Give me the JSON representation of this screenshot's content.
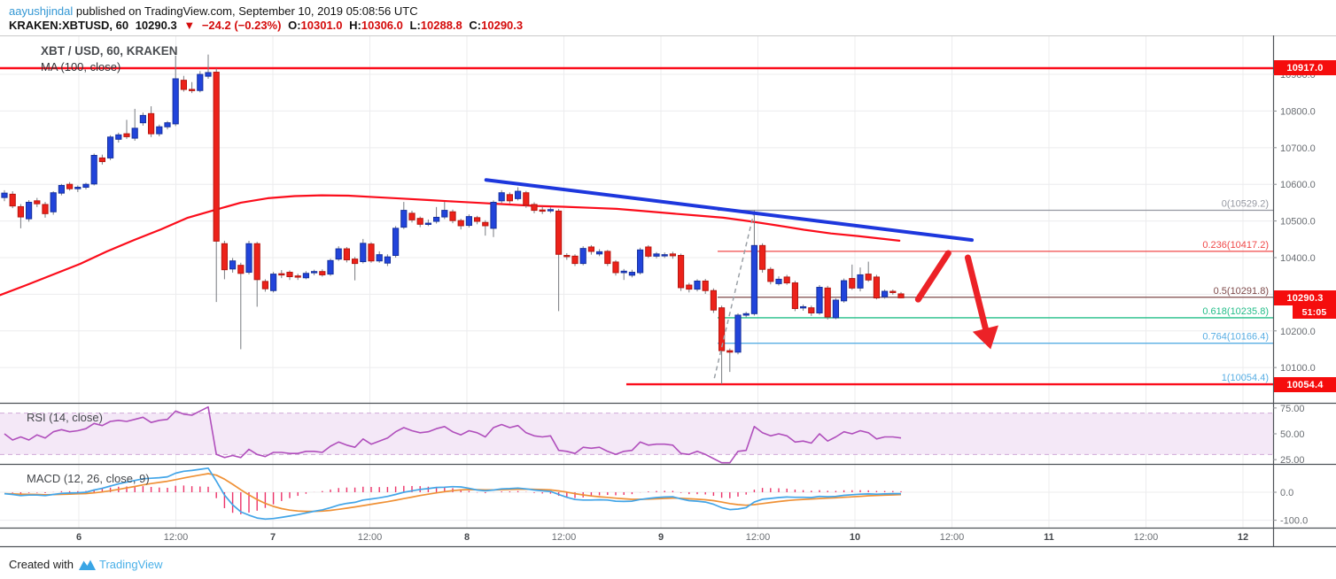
{
  "header": {
    "author": "aayushjindal",
    "published": "published on TradingView.com, September 10, 2019 05:08:56 UTC",
    "symbol": "KRAKEN:XBTUSD, 60",
    "last": "10290.3",
    "arrow": "▼",
    "change": "−24.2 (−0.23%)",
    "o_label": "O:",
    "o": "10301.0",
    "h_label": "H:",
    "h": "10306.0",
    "l_label": "L:",
    "l": "10288.8",
    "c_label": "C:",
    "c": "10290.3"
  },
  "legends": {
    "title": "XBT / USD, 60, KRAKEN",
    "ma": "MA (100, close)",
    "rsi": "RSI (14, close)",
    "macd": "MACD (12, 26, close, 9)"
  },
  "tags": {
    "resistance": "10917.0",
    "last_price": "10290.3",
    "countdown": "51:05",
    "support": "10054.4"
  },
  "footer": {
    "created_with": "Created with",
    "brand": "TradingView"
  },
  "chart_data": {
    "type": "candlestick+indicators",
    "symbol": "XBT/USD",
    "exchange": "KRAKEN",
    "interval_minutes": 60,
    "price_range_visible": [
      10003,
      11006
    ],
    "grid": true,
    "colors": {
      "up": "#2144db",
      "up_border": "#16309e",
      "down": "#ec221a",
      "down_border": "#b8150f",
      "wick": "#787b80",
      "ma": "#fb0d1b",
      "trendline": "#1d37dd",
      "rsi": "#b04fbc",
      "rsi_band_fill": "#f4e8f7",
      "rsi_band_edge": "#cfaad8",
      "macd_line": "#42a5e8",
      "signal_line": "#ef9136",
      "histogram": "#ec3369",
      "drawn_level": "#fb0d1b",
      "arrow": "#ec2227",
      "dashed_drawing": "#9aa0a6",
      "tag_bg": "#f50d0d",
      "grid": "#ececee",
      "axis_text": "#6a6e73",
      "separator": "#4e5257"
    },
    "x_labels": [
      "6",
      "12:00",
      "7",
      "12:00",
      "8",
      "12:00",
      "9",
      "12:00",
      "10",
      "12:00",
      "11",
      "12:00",
      "12"
    ],
    "price_ticks": [
      {
        "v": 10900,
        "label": "10900.0"
      },
      {
        "v": 10800,
        "label": "10800.0"
      },
      {
        "v": 10700,
        "label": "10700.0"
      },
      {
        "v": 10600,
        "label": "10600.0"
      },
      {
        "v": 10500,
        "label": "10500.0"
      },
      {
        "v": 10400,
        "label": "10400.0"
      },
      {
        "v": 10200,
        "label": "10200.0"
      },
      {
        "v": 10100,
        "label": "10100.0"
      }
    ],
    "price_gridlines": [
      10900,
      10800,
      10700,
      10600,
      10500,
      10400,
      10300,
      10200,
      10100
    ],
    "rsi_scale": [
      {
        "v": 75,
        "label": "75.00"
      },
      {
        "v": 50,
        "label": "50.00"
      },
      {
        "v": 25,
        "label": "25.00"
      }
    ],
    "rsi_band": [
      30,
      70
    ],
    "macd_scale": [
      {
        "v": 0,
        "label": "0.0"
      },
      {
        "v": -100,
        "label": "-100.0"
      }
    ],
    "fib_levels": [
      {
        "label": "0(10529.2)",
        "price": 10529.2,
        "color": "#9598a1"
      },
      {
        "label": "0.236(10417.2)",
        "price": 10417.2,
        "color": "#f04848"
      },
      {
        "label": "0.5(10291.8)",
        "price": 10291.8,
        "color": "#7e4a4a"
      },
      {
        "label": "0.618(10235.8)",
        "price": 10235.8,
        "color": "#22bd88"
      },
      {
        "label": "0.764(10166.4)",
        "price": 10166.4,
        "color": "#58aee4"
      },
      {
        "label": "1(10054.4)",
        "price": 10054.4,
        "color": "#58aee4"
      }
    ],
    "fib_start_index": 87.5,
    "horizontal_lines": [
      {
        "price": 10917.0,
        "from_index": -0.6,
        "label": "10917.0"
      },
      {
        "price": 10054.4,
        "from_index": 76.3,
        "label": "10054.4"
      }
    ],
    "trend_line": {
      "from": {
        "i": 59.1,
        "price": 10612
      },
      "to": {
        "i": 118.7,
        "price": 10448
      }
    },
    "dashed_line": {
      "from": {
        "i": 87.1,
        "price": 10071
      },
      "to": {
        "i": 91.9,
        "price": 10518
      }
    },
    "arrow_segments": [
      {
        "from": {
          "i": 112.1,
          "price": 10286
        },
        "to": {
          "i": 115.8,
          "price": 10412
        },
        "head": false
      },
      {
        "from": {
          "i": 118.2,
          "price": 10400
        },
        "to": {
          "i": 121.0,
          "price": 10150
        },
        "head": true
      }
    ],
    "ma_points": [
      [
        -0.5,
        10298
      ],
      [
        2.7,
        10325
      ],
      [
        6,
        10354
      ],
      [
        9.3,
        10383
      ],
      [
        12.6,
        10417
      ],
      [
        15.9,
        10448
      ],
      [
        19.2,
        10477
      ],
      [
        22.5,
        10509
      ],
      [
        25.8,
        10530
      ],
      [
        29,
        10550
      ],
      [
        32.3,
        10562
      ],
      [
        35.6,
        10568
      ],
      [
        38.9,
        10570
      ],
      [
        42.2,
        10569
      ],
      [
        45.5,
        10565
      ],
      [
        48.8,
        10561
      ],
      [
        52.1,
        10557
      ],
      [
        55.3,
        10553
      ],
      [
        58.6,
        10549
      ],
      [
        61.9,
        10545
      ],
      [
        65.2,
        10541
      ],
      [
        68.5,
        10539
      ],
      [
        71.8,
        10536
      ],
      [
        75.1,
        10533
      ],
      [
        78.4,
        10527
      ],
      [
        81.6,
        10521
      ],
      [
        84.9,
        10515
      ],
      [
        88.2,
        10509
      ],
      [
        91.5,
        10499
      ],
      [
        94.8,
        10488
      ],
      [
        98.1,
        10476
      ],
      [
        101.4,
        10466
      ],
      [
        104.7,
        10459
      ],
      [
        107.5,
        10452
      ],
      [
        109.8,
        10446
      ]
    ],
    "candles_ohlc": [
      [
        10564,
        10584,
        10554,
        10576
      ],
      [
        10573,
        10581,
        10535,
        10541
      ],
      [
        10539,
        10546,
        10480,
        10511
      ],
      [
        10506,
        10557,
        10498,
        10551
      ],
      [
        10555,
        10563,
        10538,
        10547
      ],
      [
        10545,
        10552,
        10509,
        10520
      ],
      [
        10525,
        10581,
        10517,
        10577
      ],
      [
        10576,
        10601,
        10570,
        10597
      ],
      [
        10600,
        10606,
        10583,
        10588
      ],
      [
        10588,
        10597,
        10579,
        10592
      ],
      [
        10592,
        10604,
        10586,
        10600
      ],
      [
        10601,
        10684,
        10597,
        10679
      ],
      [
        10672,
        10681,
        10654,
        10662
      ],
      [
        10672,
        10734,
        10666,
        10729
      ],
      [
        10723,
        10741,
        10714,
        10735
      ],
      [
        10738,
        10776,
        10724,
        10730
      ],
      [
        10726,
        10806,
        10719,
        10753
      ],
      [
        10768,
        10796,
        10760,
        10788
      ],
      [
        10793,
        10813,
        10729,
        10738
      ],
      [
        10738,
        10763,
        10731,
        10757
      ],
      [
        10757,
        10773,
        10750,
        10768
      ],
      [
        10765,
        10951,
        10759,
        10888
      ],
      [
        10884,
        10896,
        10853,
        10859
      ],
      [
        10859,
        10879,
        10849,
        10856
      ],
      [
        10856,
        10909,
        10851,
        10900
      ],
      [
        10895,
        10954,
        10888,
        10905
      ],
      [
        10906,
        10916,
        10279,
        10445
      ],
      [
        10438,
        10446,
        10341,
        10367
      ],
      [
        10369,
        10399,
        10359,
        10391
      ],
      [
        10379,
        10386,
        10150,
        10357
      ],
      [
        10360,
        10446,
        10354,
        10438
      ],
      [
        10438,
        10443,
        10266,
        10340
      ],
      [
        10335,
        10341,
        10307,
        10315
      ],
      [
        10310,
        10361,
        10305,
        10355
      ],
      [
        10356,
        10366,
        10344,
        10353
      ],
      [
        10360,
        10365,
        10339,
        10348
      ],
      [
        10350,
        10356,
        10339,
        10347
      ],
      [
        10345,
        10363,
        10341,
        10357
      ],
      [
        10360,
        10367,
        10352,
        10362
      ],
      [
        10362,
        10368,
        10348,
        10353
      ],
      [
        10355,
        10397,
        10350,
        10392
      ],
      [
        10396,
        10431,
        10391,
        10424
      ],
      [
        10424,
        10429,
        10387,
        10394
      ],
      [
        10396,
        10402,
        10338,
        10384
      ],
      [
        10389,
        10451,
        10384,
        10439
      ],
      [
        10437,
        10442,
        10386,
        10391
      ],
      [
        10391,
        10417,
        10386,
        10408
      ],
      [
        10385,
        10409,
        10377,
        10402
      ],
      [
        10406,
        10486,
        10400,
        10480
      ],
      [
        10483,
        10552,
        10478,
        10529
      ],
      [
        10521,
        10528,
        10496,
        10503
      ],
      [
        10507,
        10512,
        10483,
        10491
      ],
      [
        10491,
        10504,
        10486,
        10494
      ],
      [
        10499,
        10538,
        10493,
        10510
      ],
      [
        10511,
        10552,
        10505,
        10529
      ],
      [
        10525,
        10531,
        10494,
        10501
      ],
      [
        10501,
        10506,
        10477,
        10487
      ],
      [
        10488,
        10518,
        10482,
        10512
      ],
      [
        10509,
        10514,
        10491,
        10499
      ],
      [
        10496,
        10502,
        10460,
        10487
      ],
      [
        10480,
        10556,
        10456,
        10551
      ],
      [
        10555,
        10584,
        10549,
        10577
      ],
      [
        10572,
        10578,
        10548,
        10555
      ],
      [
        10561,
        10592,
        10556,
        10581
      ],
      [
        10577,
        10582,
        10536,
        10543
      ],
      [
        10545,
        10551,
        10521,
        10529
      ],
      [
        10530,
        10539,
        10519,
        10528
      ],
      [
        10528,
        10537,
        10522,
        10531
      ],
      [
        10527,
        10533,
        10254,
        10409
      ],
      [
        10406,
        10412,
        10394,
        10403
      ],
      [
        10404,
        10409,
        10377,
        10384
      ],
      [
        10384,
        10431,
        10379,
        10425
      ],
      [
        10429,
        10434,
        10408,
        10417
      ],
      [
        10410,
        10423,
        10404,
        10416
      ],
      [
        10417,
        10421,
        10377,
        10384
      ],
      [
        10388,
        10393,
        10351,
        10359
      ],
      [
        10359,
        10369,
        10339,
        10363
      ],
      [
        10352,
        10367,
        10346,
        10360
      ],
      [
        10359,
        10427,
        10354,
        10421
      ],
      [
        10429,
        10434,
        10399,
        10404
      ],
      [
        10404,
        10415,
        10398,
        10410
      ],
      [
        10406,
        10414,
        10399,
        10408
      ],
      [
        10410,
        10416,
        10397,
        10405
      ],
      [
        10406,
        10411,
        10309,
        10318
      ],
      [
        10325,
        10331,
        10305,
        10314
      ],
      [
        10314,
        10341,
        10308,
        10336
      ],
      [
        10336,
        10342,
        10301,
        10310
      ],
      [
        10310,
        10316,
        10249,
        10257
      ],
      [
        10263,
        10269,
        10054.4,
        10146
      ],
      [
        10146,
        10152,
        10088,
        10142
      ],
      [
        10142,
        10248,
        10136,
        10243
      ],
      [
        10243,
        10252,
        10237,
        10247
      ],
      [
        10247,
        10529.2,
        10242,
        10433
      ],
      [
        10433,
        10439,
        10359,
        10368
      ],
      [
        10368,
        10374,
        10327,
        10335
      ],
      [
        10329,
        10349,
        10324,
        10341
      ],
      [
        10347,
        10353,
        10326,
        10331
      ],
      [
        10331,
        10337,
        10254,
        10261
      ],
      [
        10263,
        10272,
        10255,
        10266
      ],
      [
        10263,
        10269,
        10241,
        10249
      ],
      [
        10249,
        10325,
        10244,
        10319
      ],
      [
        10317,
        10323,
        10231,
        10238
      ],
      [
        10236,
        10289,
        10232,
        10284
      ],
      [
        10282,
        10343,
        10277,
        10337
      ],
      [
        10343,
        10381,
        10312,
        10317
      ],
      [
        10317,
        10373,
        10308,
        10353
      ],
      [
        10355,
        10389,
        10334,
        10339
      ],
      [
        10347,
        10353,
        10286,
        10290
      ],
      [
        10293,
        10313,
        10288,
        10308
      ],
      [
        10308,
        10313,
        10299,
        10305
      ],
      [
        10301,
        10306,
        10288.8,
        10290.3
      ]
    ],
    "rsi": [
      50,
      44,
      47,
      44,
      49,
      46,
      52,
      54,
      52,
      53,
      55,
      60,
      58,
      62,
      63,
      62,
      64,
      66,
      61,
      63,
      64,
      72,
      69,
      68,
      72,
      76,
      30,
      27,
      29,
      27,
      35,
      30,
      28,
      32,
      32,
      31,
      31,
      33,
      33,
      32,
      38,
      42,
      39,
      37,
      45,
      40,
      43,
      46,
      52,
      56,
      53,
      51,
      52,
      55,
      57,
      52,
      49,
      53,
      51,
      47,
      56,
      59,
      56,
      58,
      51,
      48,
      47,
      48,
      34,
      33,
      31,
      37,
      36,
      37,
      33,
      30,
      33,
      34,
      42,
      39,
      40,
      40,
      39,
      31,
      30,
      33,
      30,
      26,
      22,
      22,
      33,
      34,
      57,
      51,
      48,
      50,
      48,
      42,
      43,
      41,
      50,
      43,
      47,
      52,
      50,
      53,
      51,
      45,
      47,
      47,
      46
    ],
    "macd": [
      -5,
      -8,
      -12,
      -10,
      -10,
      -12,
      -8,
      -4,
      -3,
      -2,
      0,
      8,
      14,
      22,
      30,
      36,
      42,
      48,
      50,
      52,
      55,
      68,
      75,
      78,
      82,
      86,
      40,
      -10,
      -45,
      -70,
      -82,
      -92,
      -96,
      -94,
      -90,
      -85,
      -80,
      -74,
      -68,
      -63,
      -55,
      -46,
      -40,
      -36,
      -28,
      -24,
      -20,
      -15,
      -8,
      0,
      5,
      10,
      13,
      17,
      18,
      20,
      19,
      14,
      8,
      5,
      8,
      12,
      13,
      15,
      12,
      8,
      5,
      3,
      -8,
      -18,
      -26,
      -28,
      -28,
      -27,
      -28,
      -32,
      -33,
      -32,
      -26,
      -22,
      -19,
      -17,
      -16,
      -24,
      -30,
      -32,
      -35,
      -43,
      -55,
      -62,
      -60,
      -55,
      -35,
      -25,
      -22,
      -19,
      -17,
      -18,
      -18,
      -19,
      -15,
      -16,
      -15,
      -11,
      -9,
      -7,
      -6,
      -7,
      -6,
      -5,
      -5
    ],
    "signal_ema_period": 9
  }
}
